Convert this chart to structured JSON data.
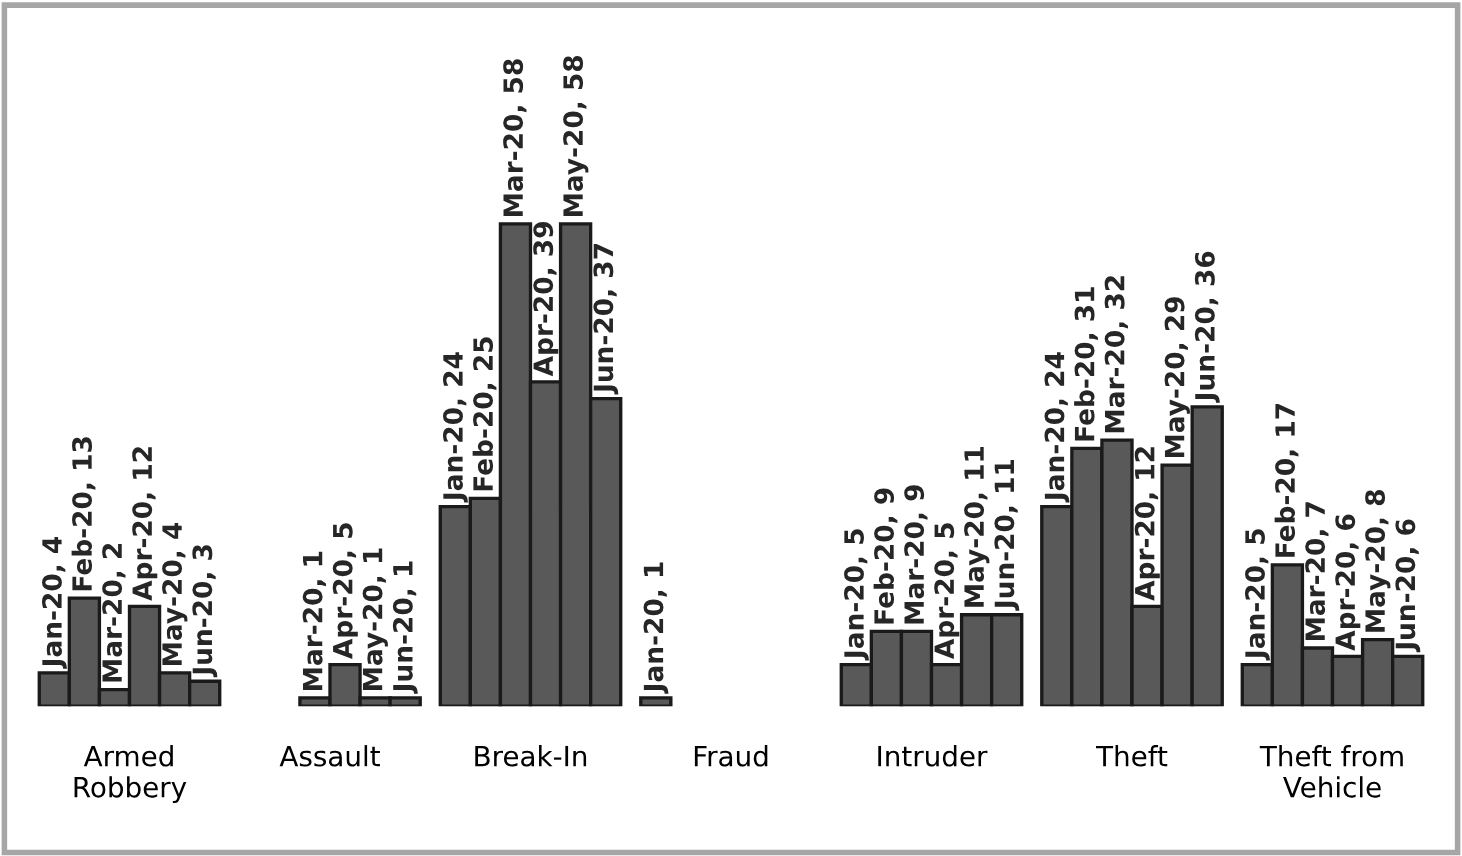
{
  "chart_data": {
    "type": "bar",
    "categories": [
      "Armed\nRobbery",
      "Assault",
      "Break-In",
      "Fraud",
      "Intruder",
      "Theft",
      "Theft from\nVehicle"
    ],
    "series": [
      {
        "color": "#595959",
        "values": [
          4,
          null,
          24,
          1,
          5,
          24,
          5
        ],
        "value_labels": [
          "Jan-20, 4",
          null,
          "Jan-20, 24",
          "Jan-20, 1",
          "Jan-20, 5",
          "Jan-20, 24",
          "Jan-20, 5"
        ]
      },
      {
        "color": "#595959",
        "values": [
          13,
          null,
          25,
          null,
          9,
          31,
          17
        ],
        "value_labels": [
          "Feb-20, 13",
          null,
          "Feb-20, 25",
          null,
          "Feb-20, 9",
          "Feb-20, 31",
          "Feb-20, 17"
        ]
      },
      {
        "color": "#595959",
        "values": [
          2,
          1,
          58,
          null,
          9,
          32,
          7
        ],
        "value_labels": [
          "Mar-20, 2",
          "Mar-20, 1",
          "Mar-20, 58",
          null,
          "Mar-20, 9",
          "Mar-20, 32",
          "Mar-20, 7"
        ]
      },
      {
        "color": "#595959",
        "values": [
          12,
          5,
          39,
          null,
          5,
          12,
          6
        ],
        "value_labels": [
          "Apr-20, 12",
          "Apr-20, 5",
          "Apr-20, 39",
          null,
          "Apr-20, 5",
          "Apr-20, 12",
          "Apr-20, 6"
        ]
      },
      {
        "color": "#595959",
        "values": [
          4,
          1,
          58,
          null,
          11,
          29,
          8
        ],
        "value_labels": [
          "May-20, 4",
          "May-20, 1",
          "May-20, 58",
          null,
          "May-20, 11",
          "May-20, 29",
          "May-20, 8"
        ]
      },
      {
        "color": "#595959",
        "values": [
          3,
          1,
          37,
          null,
          11,
          36,
          6
        ],
        "value_labels": [
          "Jun-20, 3",
          "Jun-20, 1",
          "Jun-20, 37",
          null,
          "Jun-20, 11",
          "Jun-20, 36",
          "Jun-20, 6"
        ]
      }
    ],
    "grid": false,
    "legend": false
  }
}
